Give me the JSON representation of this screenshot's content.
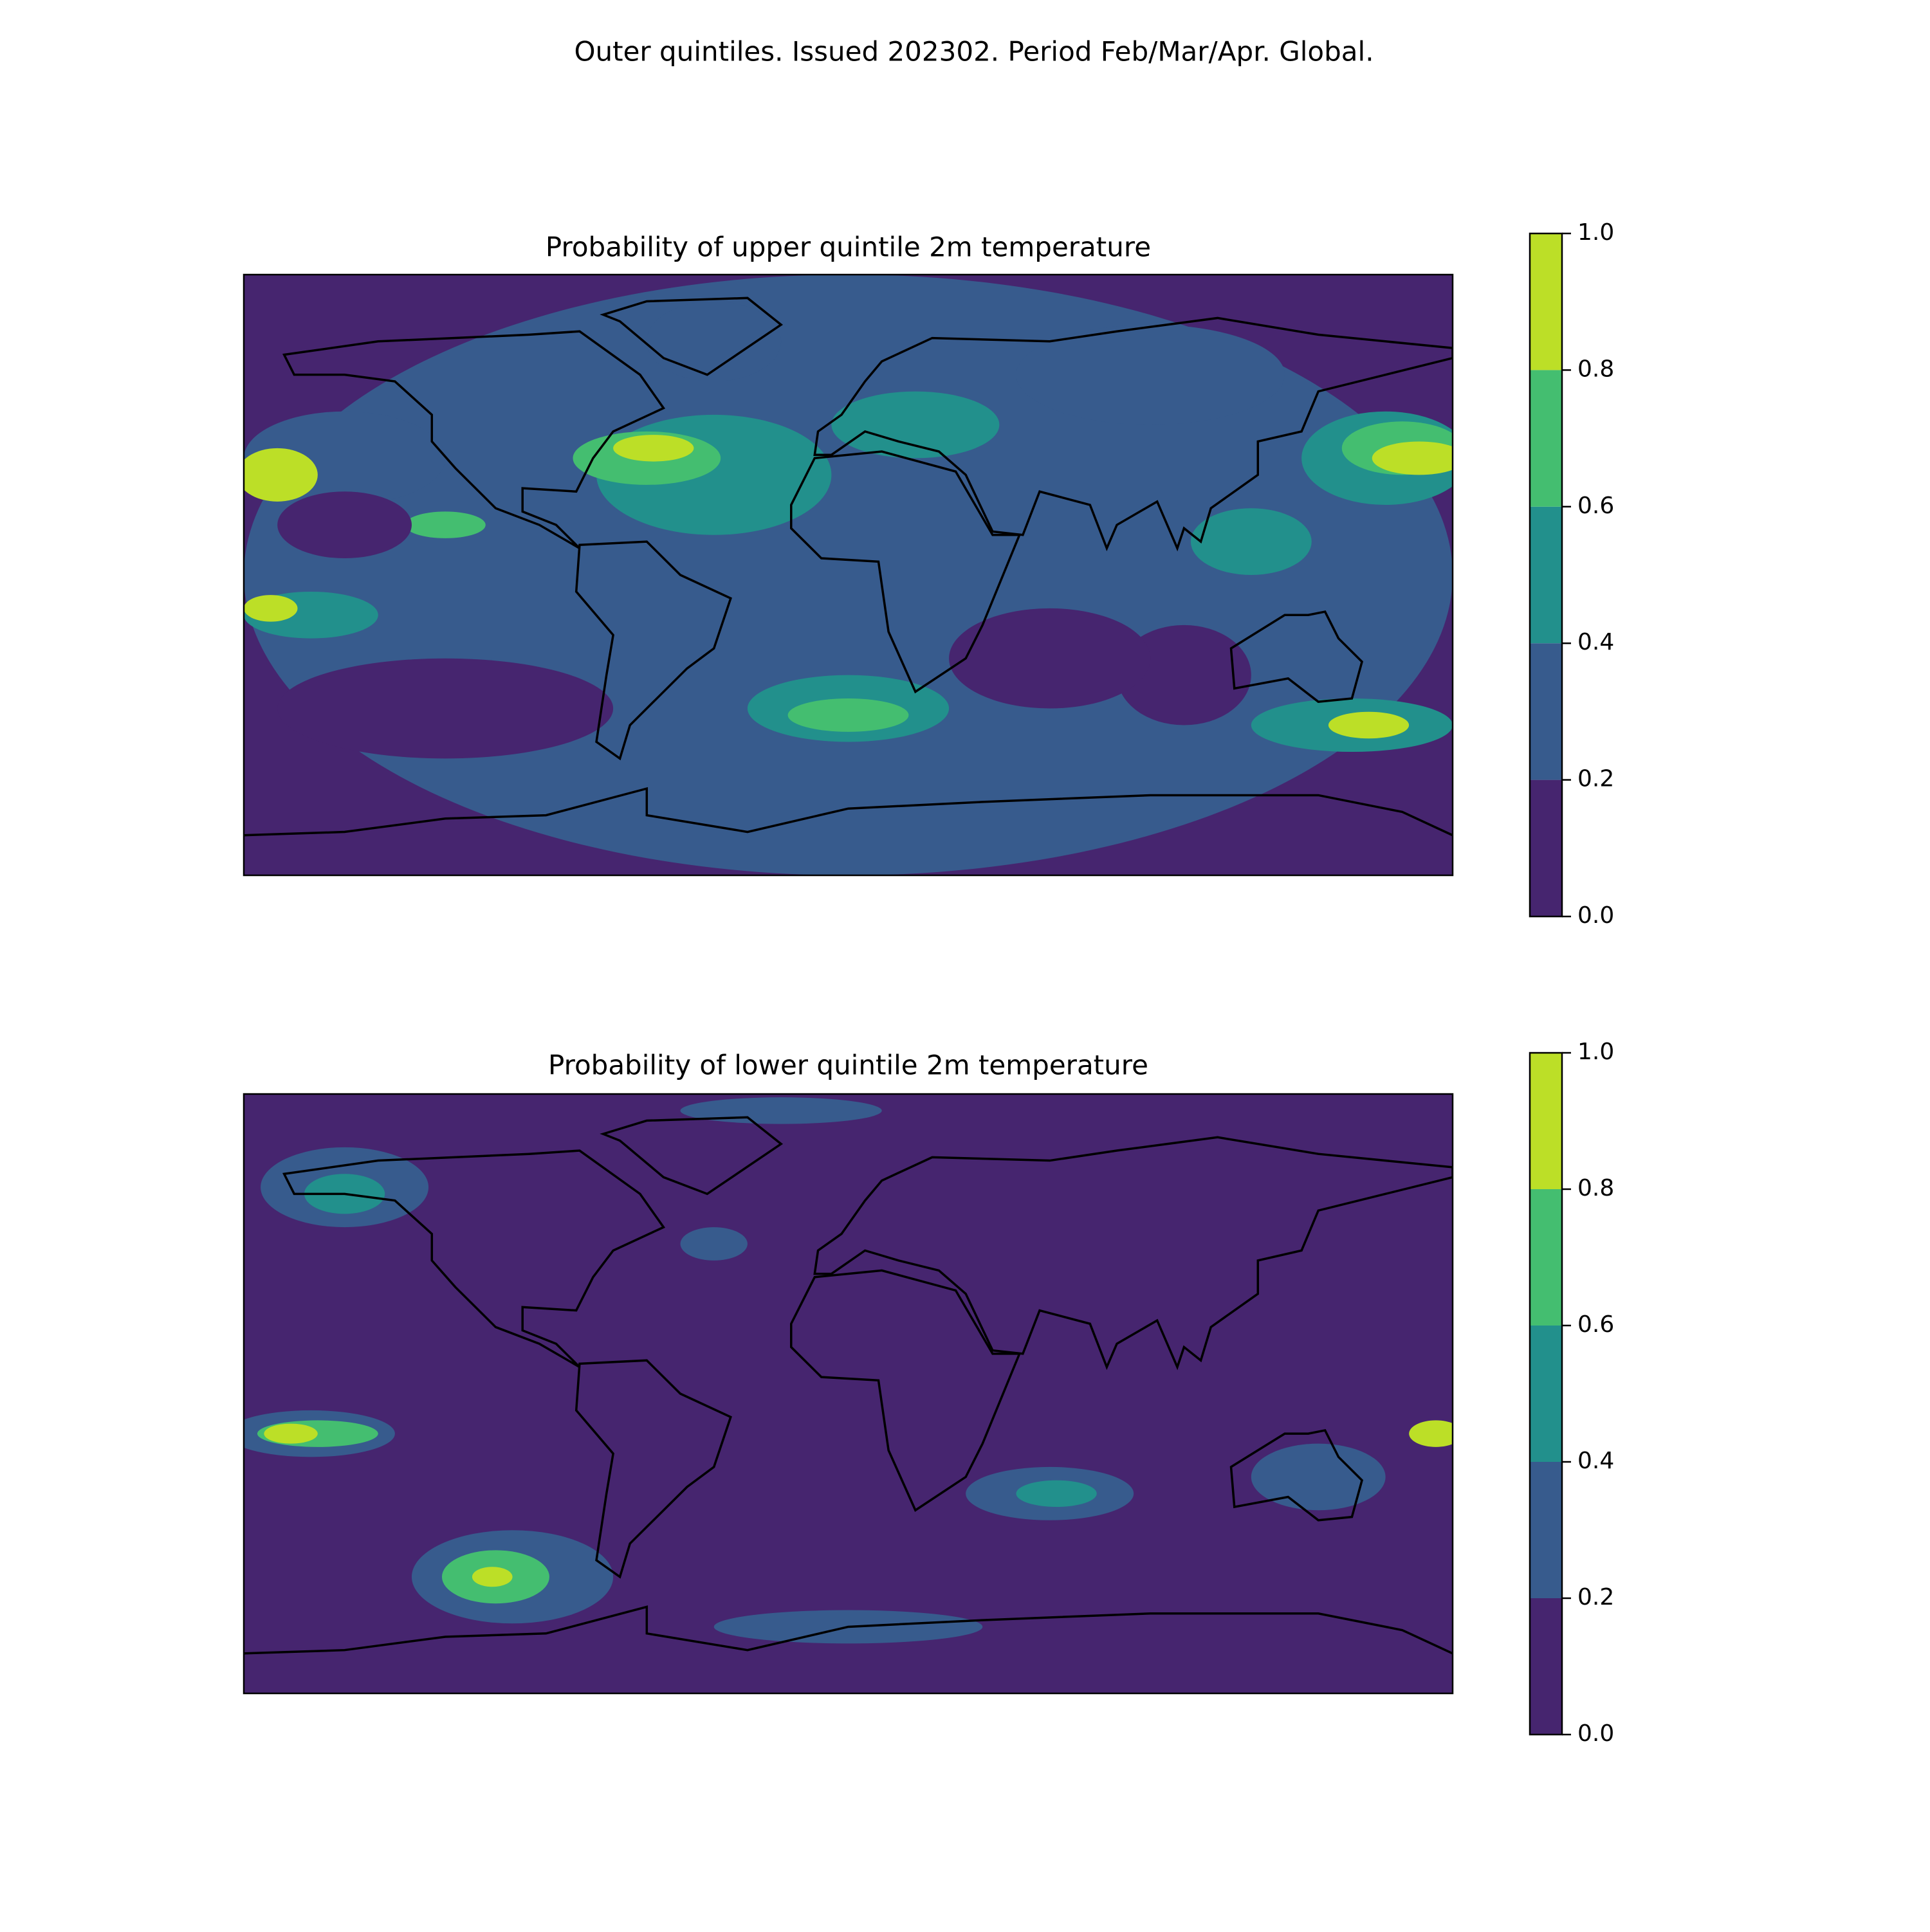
{
  "title": "Outer quintiles. Issued 202302. Period Feb/Mar/Apr. Global.",
  "chart_data": [
    {
      "type": "contourf",
      "title": "Probability of upper quintile 2m temperature",
      "clim": [
        0,
        1
      ],
      "cticks": [
        {
          "value": 0,
          "label": "0.0"
        },
        0.2,
        0.4,
        0.6,
        0.8,
        {
          "value": 1,
          "label": "1.0"
        }
      ],
      "colors": [
        "#46256f",
        "#375b8d",
        "#22908c",
        "#44be70",
        "#bcdf27"
      ]
    },
    {
      "type": "contourf",
      "title": "Probability of lower quintile 2m temperature",
      "clim": [
        0,
        1
      ],
      "cticks": [
        {
          "value": 0,
          "label": "0.0"
        },
        0.2,
        0.4,
        0.6,
        0.8,
        {
          "value": 1,
          "label": "1.0"
        }
      ],
      "colors": [
        "#46256f",
        "#375b8d",
        "#22908c",
        "#44be70",
        "#bcdf27"
      ]
    }
  ]
}
